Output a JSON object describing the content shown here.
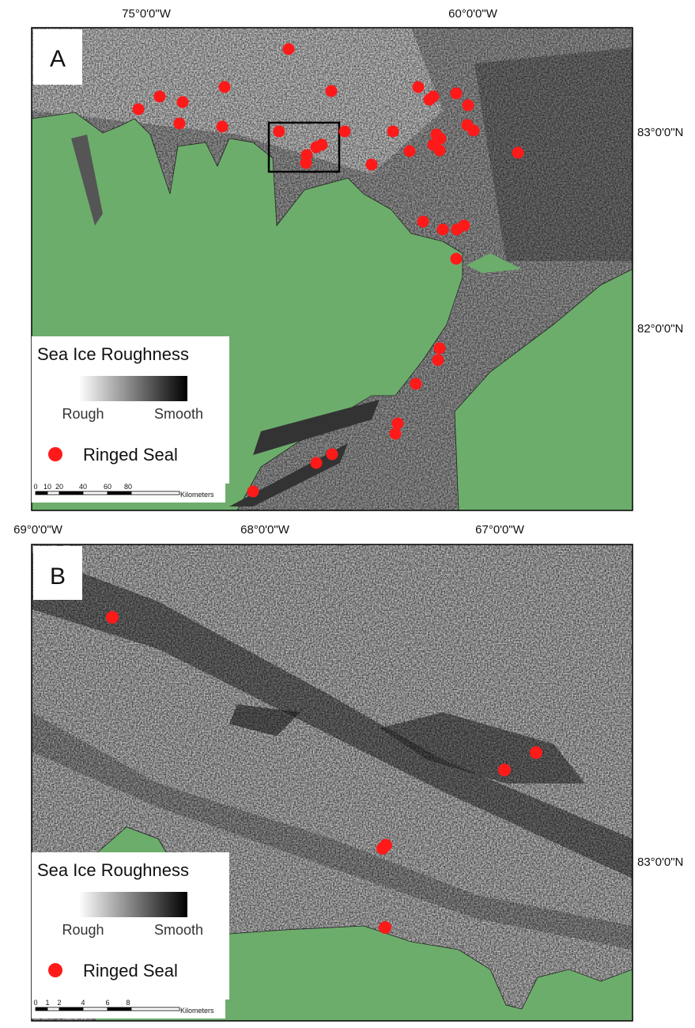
{
  "panels": [
    {
      "label": "A",
      "top_axis_labels": [
        "75°0'0\"W",
        "60°0'0\"W"
      ],
      "right_axis_labels": [
        "83°0'0\"N",
        "82°0'0\"N"
      ],
      "left_axis_labels": [],
      "legend": {
        "title": "Sea Ice Roughness",
        "low": "Rough",
        "high": "Smooth",
        "point": "Ringed Seal"
      },
      "scale_bar": {
        "ticks": [
          "0",
          "10",
          "20",
          "40",
          "60",
          "80"
        ],
        "unit": "Kilometers"
      }
    },
    {
      "label": "B",
      "top_axis_labels": [
        "68°0'0\"W",
        "67°0'0\"W"
      ],
      "right_axis_labels": [
        "83°0'0\"N"
      ],
      "left_axis_labels": [
        "69°0'0\"W"
      ],
      "legend": {
        "title": "Sea Ice Roughness",
        "low": "Rough",
        "high": "Smooth",
        "point": "Ringed Seal"
      },
      "scale_bar": {
        "ticks": [
          "0",
          "1",
          "2",
          "4",
          "6",
          "8"
        ],
        "unit": "Kilometers"
      }
    }
  ]
}
